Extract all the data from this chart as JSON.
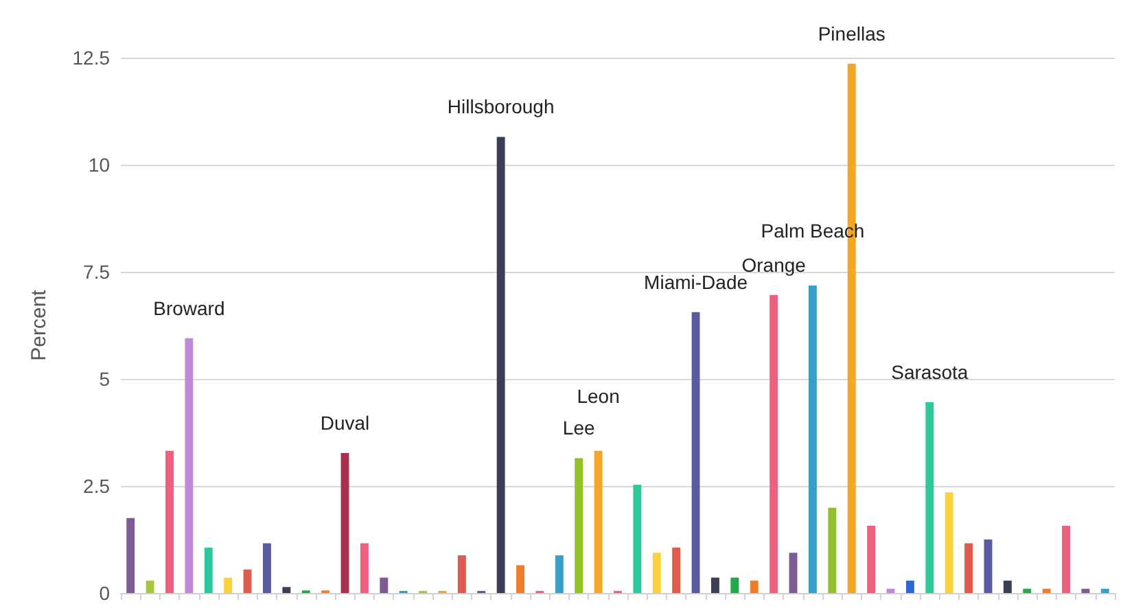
{
  "chart_data": {
    "type": "bar",
    "ylabel": "Percent",
    "categories": [
      null,
      null,
      null,
      "Broward",
      null,
      null,
      null,
      null,
      null,
      null,
      null,
      "Duval",
      null,
      null,
      null,
      null,
      null,
      null,
      null,
      "Hillsborough",
      null,
      null,
      null,
      "Lee",
      "Leon",
      null,
      null,
      null,
      null,
      "Miami-Dade",
      null,
      null,
      null,
      "Orange",
      null,
      "Palm Beach",
      null,
      "Pinellas",
      null,
      null,
      null,
      "Sarasota",
      null,
      null,
      null,
      null,
      null,
      null,
      null,
      null,
      null
    ],
    "values": [
      1.75,
      0.29,
      3.32,
      5.95,
      1.06,
      0.36,
      0.55,
      1.16,
      0.14,
      0.06,
      0.06,
      3.27,
      1.16,
      0.36,
      0.05,
      0.05,
      0.05,
      0.88,
      0.05,
      10.65,
      0.65,
      0.05,
      0.88,
      3.15,
      3.32,
      0.05,
      2.53,
      0.94,
      1.06,
      6.56,
      0.36,
      0.36,
      0.29,
      6.96,
      0.94,
      7.18,
      1.99,
      12.36,
      1.57,
      0.1,
      0.29,
      4.46,
      2.35,
      1.16,
      1.25,
      0.29,
      0.1,
      0.1,
      1.57,
      0.1,
      0.1
    ],
    "colors": [
      "#7b5c94",
      "#a3c93a",
      "#f0607e",
      "#c08ad8",
      "#2ec99a",
      "#fdd03e",
      "#e05a4e",
      "#5b5ba0",
      "#3b3f56",
      "#22a84a",
      "#ef7d2a",
      "#a8304e",
      "#f0607e",
      "#7b5c94",
      "#38a0c8",
      "#a3c93a",
      "#f5a623",
      "#e05a4e",
      "#5b5ba0",
      "#3b3f56",
      "#ef7d2a",
      "#f0607e",
      "#38a0c8",
      "#93c02a",
      "#f5a623",
      "#f0607e",
      "#2ec99a",
      "#fdd03e",
      "#e05a4e",
      "#5b5ba0",
      "#3b3f56",
      "#22a84a",
      "#ef7d2a",
      "#f0607e",
      "#7b5c94",
      "#38a0c8",
      "#93c02a",
      "#f5a623",
      "#f0607e",
      "#c08ad8",
      "#3066d0",
      "#2ec99a",
      "#fdd03e",
      "#e05a4e",
      "#5b5ba0",
      "#3b3f56",
      "#22a84a",
      "#ef7d2a",
      "#f0607e",
      "#7b5c94",
      "#38a0c8"
    ],
    "ylim": [
      0,
      12.5
    ],
    "yticks": [
      0,
      2.5,
      5,
      7.5,
      10,
      12.5
    ],
    "grid": "y",
    "tick_labels": "y"
  }
}
